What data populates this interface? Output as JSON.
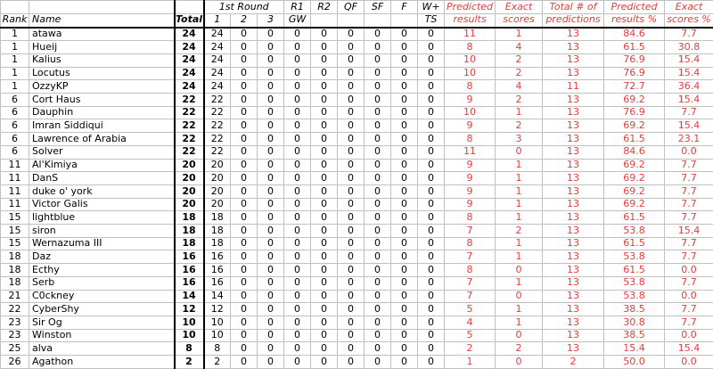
{
  "colors": {
    "red_text": "#e83a3a",
    "gridline": "#c0c0c0",
    "thick_border": "#000000",
    "background": "#ffffff"
  },
  "header": {
    "row1": {
      "round1": "1st Round",
      "r1": "R1",
      "r2": "R2",
      "qf": "QF",
      "sf": "SF",
      "f": "F",
      "w_plus": "W+",
      "predicted": "Predicted",
      "exact": "Exact",
      "total_num_of": "Total # of",
      "predicted_pct_top": "Predicted",
      "exact_pct_top": "Exact"
    },
    "row2": {
      "rank": "Rank",
      "name": "Name",
      "total": "Total",
      "c1": "1",
      "c2": "2",
      "c3": "3",
      "gw": "GW",
      "ts": "TS",
      "results": "results",
      "scores": "scores",
      "predictions": "predictions",
      "results_pct": "results %",
      "scores_pct": "scores %"
    }
  },
  "column_keys": [
    "rank",
    "name",
    "total",
    "round1-1",
    "round1-2",
    "round1-3",
    "r1-gw",
    "r2",
    "qf",
    "sf",
    "f",
    "w-ts",
    "predicted-results",
    "exact-scores",
    "total-predictions",
    "predicted-results-pct",
    "exact-scores-pct"
  ],
  "rows": [
    [
      "1",
      "atawa",
      "24",
      "24",
      "0",
      "0",
      "0",
      "0",
      "0",
      "0",
      "0",
      "0",
      "11",
      "1",
      "13",
      "84.6",
      "7.7"
    ],
    [
      "1",
      "Hueij",
      "24",
      "24",
      "0",
      "0",
      "0",
      "0",
      "0",
      "0",
      "0",
      "0",
      "8",
      "4",
      "13",
      "61.5",
      "30.8"
    ],
    [
      "1",
      "Kalius",
      "24",
      "24",
      "0",
      "0",
      "0",
      "0",
      "0",
      "0",
      "0",
      "0",
      "10",
      "2",
      "13",
      "76.9",
      "15.4"
    ],
    [
      "1",
      "Locutus",
      "24",
      "24",
      "0",
      "0",
      "0",
      "0",
      "0",
      "0",
      "0",
      "0",
      "10",
      "2",
      "13",
      "76.9",
      "15.4"
    ],
    [
      "1",
      "OzzyKP",
      "24",
      "24",
      "0",
      "0",
      "0",
      "0",
      "0",
      "0",
      "0",
      "0",
      "8",
      "4",
      "11",
      "72.7",
      "36.4"
    ],
    [
      "6",
      "Cort Haus",
      "22",
      "22",
      "0",
      "0",
      "0",
      "0",
      "0",
      "0",
      "0",
      "0",
      "9",
      "2",
      "13",
      "69.2",
      "15.4"
    ],
    [
      "6",
      "Dauphin",
      "22",
      "22",
      "0",
      "0",
      "0",
      "0",
      "0",
      "0",
      "0",
      "0",
      "10",
      "1",
      "13",
      "76.9",
      "7.7"
    ],
    [
      "6",
      "Imran Siddiqui",
      "22",
      "22",
      "0",
      "0",
      "0",
      "0",
      "0",
      "0",
      "0",
      "0",
      "9",
      "2",
      "13",
      "69.2",
      "15.4"
    ],
    [
      "6",
      "Lawrence of Arabia",
      "22",
      "22",
      "0",
      "0",
      "0",
      "0",
      "0",
      "0",
      "0",
      "0",
      "8",
      "3",
      "13",
      "61.5",
      "23.1"
    ],
    [
      "6",
      "Solver",
      "22",
      "22",
      "0",
      "0",
      "0",
      "0",
      "0",
      "0",
      "0",
      "0",
      "11",
      "0",
      "13",
      "84.6",
      "0.0"
    ],
    [
      "11",
      "Al'Kimiya",
      "20",
      "20",
      "0",
      "0",
      "0",
      "0",
      "0",
      "0",
      "0",
      "0",
      "9",
      "1",
      "13",
      "69.2",
      "7.7"
    ],
    [
      "11",
      "DanS",
      "20",
      "20",
      "0",
      "0",
      "0",
      "0",
      "0",
      "0",
      "0",
      "0",
      "9",
      "1",
      "13",
      "69.2",
      "7.7"
    ],
    [
      "11",
      "duke o' york",
      "20",
      "20",
      "0",
      "0",
      "0",
      "0",
      "0",
      "0",
      "0",
      "0",
      "9",
      "1",
      "13",
      "69.2",
      "7.7"
    ],
    [
      "11",
      "Victor Galis",
      "20",
      "20",
      "0",
      "0",
      "0",
      "0",
      "0",
      "0",
      "0",
      "0",
      "9",
      "1",
      "13",
      "69.2",
      "7.7"
    ],
    [
      "15",
      "lightblue",
      "18",
      "18",
      "0",
      "0",
      "0",
      "0",
      "0",
      "0",
      "0",
      "0",
      "8",
      "1",
      "13",
      "61.5",
      "7.7"
    ],
    [
      "15",
      "siron",
      "18",
      "18",
      "0",
      "0",
      "0",
      "0",
      "0",
      "0",
      "0",
      "0",
      "7",
      "2",
      "13",
      "53.8",
      "15.4"
    ],
    [
      "15",
      "Wernazuma III",
      "18",
      "18",
      "0",
      "0",
      "0",
      "0",
      "0",
      "0",
      "0",
      "0",
      "8",
      "1",
      "13",
      "61.5",
      "7.7"
    ],
    [
      "18",
      "Daz",
      "16",
      "16",
      "0",
      "0",
      "0",
      "0",
      "0",
      "0",
      "0",
      "0",
      "7",
      "1",
      "13",
      "53.8",
      "7.7"
    ],
    [
      "18",
      "Ecthy",
      "16",
      "16",
      "0",
      "0",
      "0",
      "0",
      "0",
      "0",
      "0",
      "0",
      "8",
      "0",
      "13",
      "61.5",
      "0.0"
    ],
    [
      "18",
      "Serb",
      "16",
      "16",
      "0",
      "0",
      "0",
      "0",
      "0",
      "0",
      "0",
      "0",
      "7",
      "1",
      "13",
      "53.8",
      "7.7"
    ],
    [
      "21",
      "C0ckney",
      "14",
      "14",
      "0",
      "0",
      "0",
      "0",
      "0",
      "0",
      "0",
      "0",
      "7",
      "0",
      "13",
      "53.8",
      "0.0"
    ],
    [
      "22",
      "CyberShy",
      "12",
      "12",
      "0",
      "0",
      "0",
      "0",
      "0",
      "0",
      "0",
      "0",
      "5",
      "1",
      "13",
      "38.5",
      "7.7"
    ],
    [
      "23",
      "Sir Og",
      "10",
      "10",
      "0",
      "0",
      "0",
      "0",
      "0",
      "0",
      "0",
      "0",
      "4",
      "1",
      "13",
      "30.8",
      "7.7"
    ],
    [
      "23",
      "Winston",
      "10",
      "10",
      "0",
      "0",
      "0",
      "0",
      "0",
      "0",
      "0",
      "0",
      "5",
      "0",
      "13",
      "38.5",
      "0.0"
    ],
    [
      "25",
      "alva",
      "8",
      "8",
      "0",
      "0",
      "0",
      "0",
      "0",
      "0",
      "0",
      "0",
      "2",
      "2",
      "13",
      "15.4",
      "15.4"
    ],
    [
      "26",
      "Agathon",
      "2",
      "2",
      "0",
      "0",
      "0",
      "0",
      "0",
      "0",
      "0",
      "0",
      "1",
      "0",
      "2",
      "50.0",
      "0.0"
    ]
  ]
}
